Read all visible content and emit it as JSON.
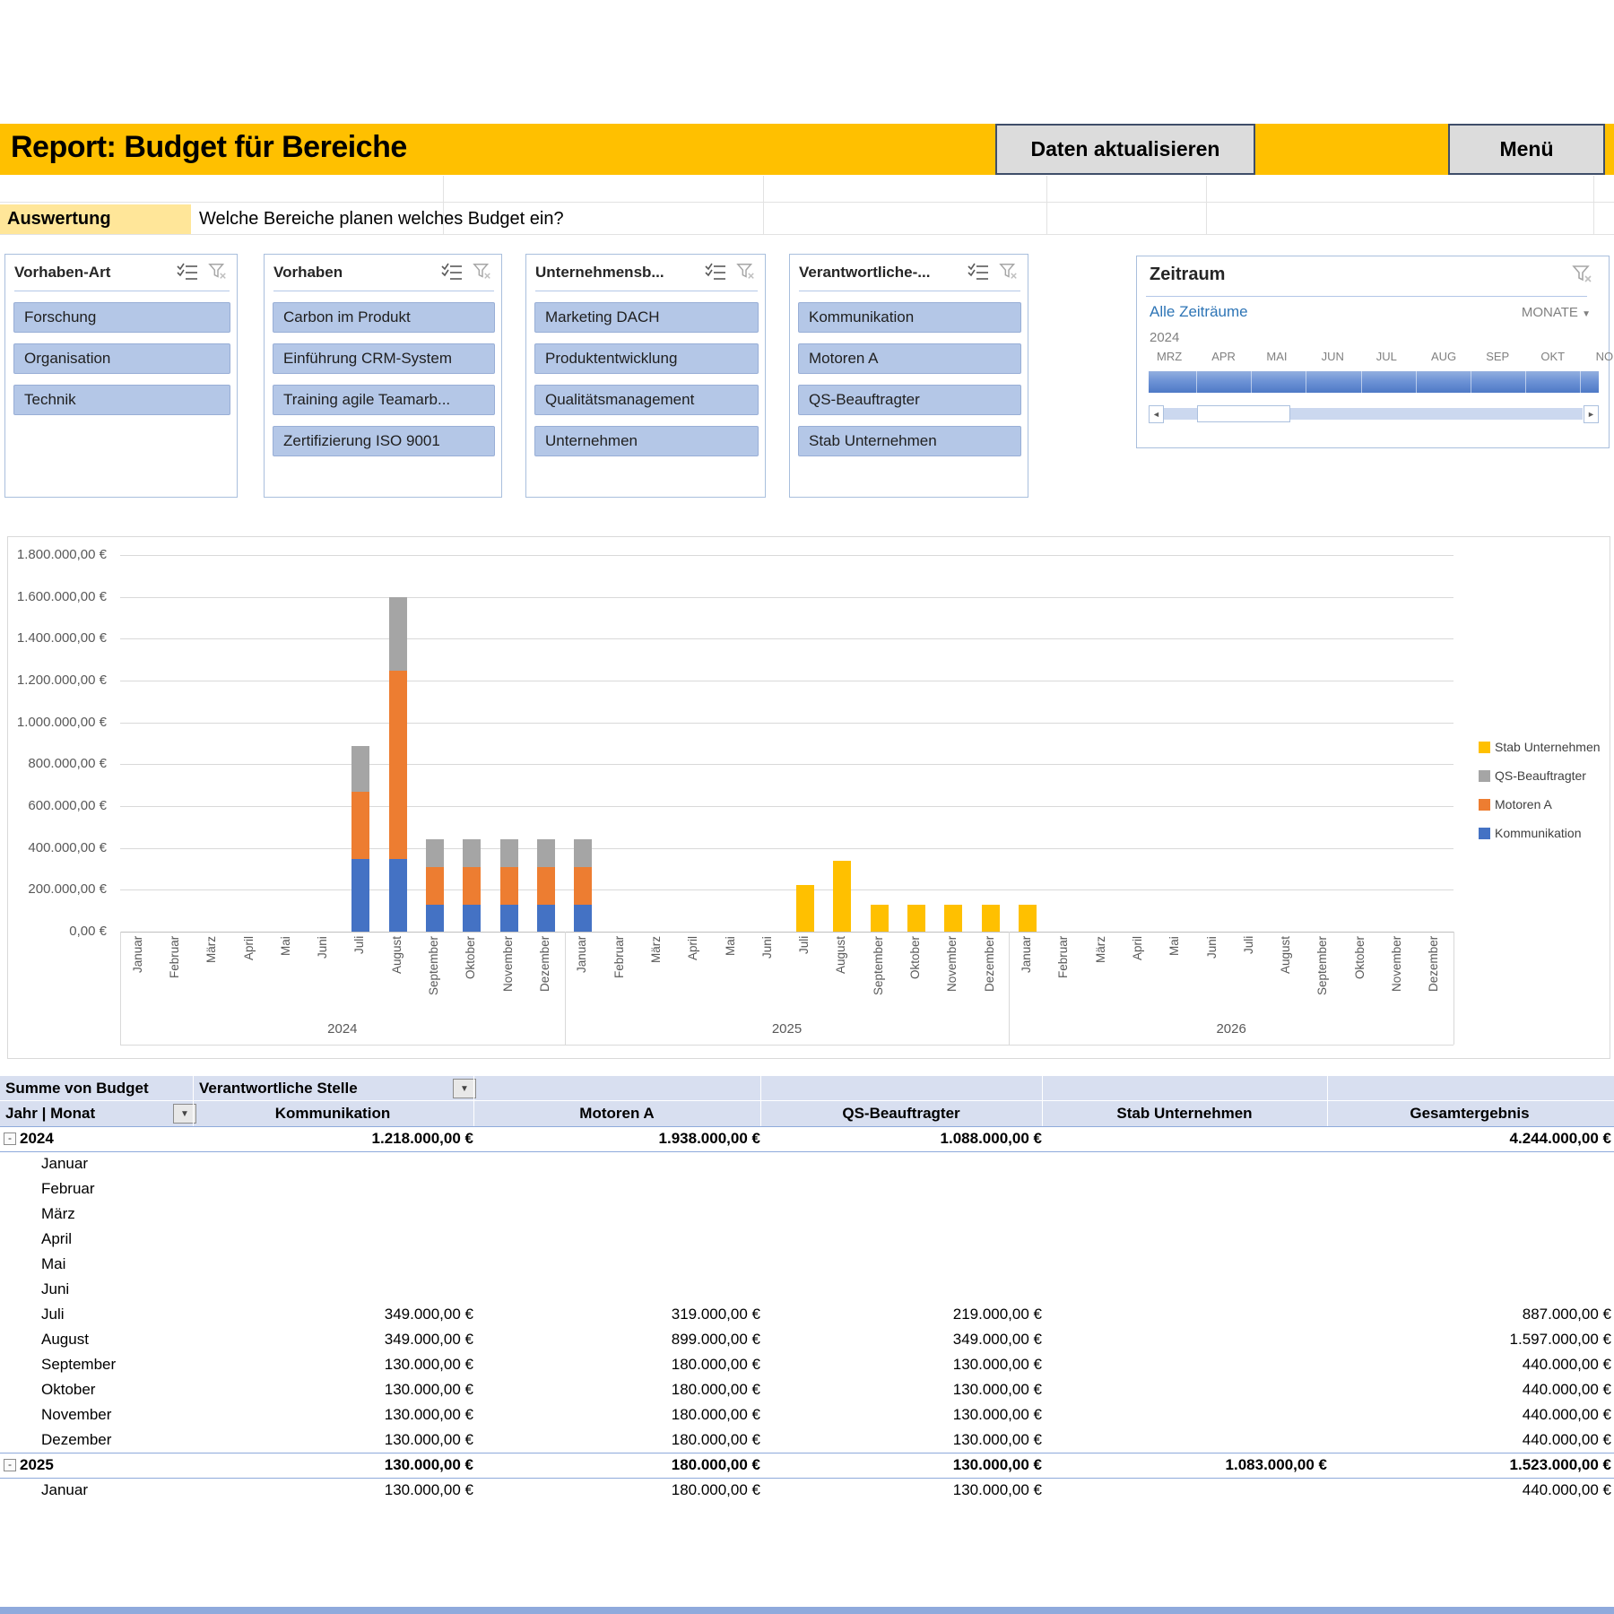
{
  "header": {
    "title": "Report: Budget für Bereiche",
    "refresh_button": "Daten aktualisieren",
    "menu_button": "Menü",
    "accent_color": "#FFC000"
  },
  "auswertung": {
    "label": "Auswertung",
    "question": "Welche Bereiche planen welches Budget ein?"
  },
  "slicers": [
    {
      "title": "Vorhaben-Art",
      "items": [
        "Forschung",
        "Organisation",
        "Technik"
      ]
    },
    {
      "title": "Vorhaben",
      "items": [
        "Carbon im Produkt",
        "Einführung CRM-System",
        "Training agile Teamarb...",
        "Zertifizierung ISO 9001"
      ]
    },
    {
      "title": "Unternehmensb...",
      "items": [
        "Marketing DACH",
        "Produktentwicklung",
        "Qualitätsmanagement",
        "Unternehmen"
      ]
    },
    {
      "title": "Verantwortliche-...",
      "items": [
        "Kommunikation",
        "Motoren A",
        "QS-Beauftragter",
        "Stab Unternehmen"
      ]
    }
  ],
  "timeline": {
    "title": "Zeitraum",
    "selection_label": "Alle Zeiträume",
    "level_selector": "MONATE",
    "level_arrow": "▼",
    "year": "2024",
    "months": [
      "MRZ",
      "APR",
      "MAI",
      "JUN",
      "JUL",
      "AUG",
      "SEP",
      "OKT",
      "NO"
    ],
    "scroll_left": "◄",
    "scroll_right": "►"
  },
  "chart_data": {
    "type": "bar",
    "stacked": true,
    "title": "",
    "ylabel": "",
    "ylim": [
      0,
      1800000
    ],
    "ytick_step": 200000,
    "y_tick_labels": [
      "0,00 €",
      "200.000,00 €",
      "400.000,00 €",
      "600.000,00 €",
      "800.000,00 €",
      "1.000.000,00 €",
      "1.200.000,00 €",
      "1.400.000,00 €",
      "1.600.000,00 €",
      "1.800.000,00 €"
    ],
    "month_labels": [
      "Januar",
      "Februar",
      "März",
      "April",
      "Mai",
      "Juni",
      "Juli",
      "August",
      "September",
      "Oktober",
      "November",
      "Dezember"
    ],
    "years": [
      "2024",
      "2025",
      "2026"
    ],
    "legend_position": "right",
    "series": [
      {
        "name": "Kommunikation",
        "color": "#4472C4",
        "values": [
          0,
          0,
          0,
          0,
          0,
          0,
          349000,
          349000,
          130000,
          130000,
          130000,
          130000,
          130000,
          0,
          0,
          0,
          0,
          0,
          0,
          0,
          0,
          0,
          0,
          0,
          0,
          0,
          0,
          0,
          0,
          0,
          0,
          0,
          0,
          0,
          0,
          0
        ]
      },
      {
        "name": "Motoren A",
        "color": "#ED7D31",
        "values": [
          0,
          0,
          0,
          0,
          0,
          0,
          319000,
          899000,
          180000,
          180000,
          180000,
          180000,
          180000,
          0,
          0,
          0,
          0,
          0,
          0,
          0,
          0,
          0,
          0,
          0,
          0,
          0,
          0,
          0,
          0,
          0,
          0,
          0,
          0,
          0,
          0,
          0
        ]
      },
      {
        "name": "QS-Beauftragter",
        "color": "#A5A5A5",
        "values": [
          0,
          0,
          0,
          0,
          0,
          0,
          219000,
          349000,
          130000,
          130000,
          130000,
          130000,
          130000,
          0,
          0,
          0,
          0,
          0,
          0,
          0,
          0,
          0,
          0,
          0,
          0,
          0,
          0,
          0,
          0,
          0,
          0,
          0,
          0,
          0,
          0,
          0
        ]
      },
      {
        "name": "Stab Unternehmen",
        "color": "#FFC000",
        "values": [
          0,
          0,
          0,
          0,
          0,
          0,
          0,
          0,
          0,
          0,
          0,
          0,
          0,
          0,
          0,
          0,
          0,
          0,
          223000,
          340000,
          130000,
          130000,
          130000,
          130000,
          130000,
          0,
          0,
          0,
          0,
          0,
          0,
          0,
          0,
          0,
          0,
          0
        ]
      }
    ]
  },
  "pivot": {
    "measure_label": "Summe von Budget",
    "column_field_label": "Verantwortliche Stelle",
    "row_field_label": "Jahr | Monat",
    "dropdown_glyph": "▼",
    "collapse_glyph": "-",
    "columns": [
      "Kommunikation",
      "Motoren A",
      "QS-Beauftragter",
      "Stab Unternehmen",
      "Gesamtergebnis"
    ],
    "rows": [
      {
        "type": "year",
        "label": "2024",
        "values": [
          "1.218.000,00 €",
          "1.938.000,00 €",
          "1.088.000,00 €",
          "",
          "4.244.000,00 €"
        ]
      },
      {
        "type": "month",
        "label": "Januar",
        "values": [
          "",
          "",
          "",
          "",
          ""
        ]
      },
      {
        "type": "month",
        "label": "Februar",
        "values": [
          "",
          "",
          "",
          "",
          ""
        ]
      },
      {
        "type": "month",
        "label": "März",
        "values": [
          "",
          "",
          "",
          "",
          ""
        ]
      },
      {
        "type": "month",
        "label": "April",
        "values": [
          "",
          "",
          "",
          "",
          ""
        ]
      },
      {
        "type": "month",
        "label": "Mai",
        "values": [
          "",
          "",
          "",
          "",
          ""
        ]
      },
      {
        "type": "month",
        "label": "Juni",
        "values": [
          "",
          "",
          "",
          "",
          ""
        ]
      },
      {
        "type": "month",
        "label": "Juli",
        "values": [
          "349.000,00 €",
          "319.000,00 €",
          "219.000,00 €",
          "",
          "887.000,00 €"
        ]
      },
      {
        "type": "month",
        "label": "August",
        "values": [
          "349.000,00 €",
          "899.000,00 €",
          "349.000,00 €",
          "",
          "1.597.000,00 €"
        ]
      },
      {
        "type": "month",
        "label": "September",
        "values": [
          "130.000,00 €",
          "180.000,00 €",
          "130.000,00 €",
          "",
          "440.000,00 €"
        ]
      },
      {
        "type": "month",
        "label": "Oktober",
        "values": [
          "130.000,00 €",
          "180.000,00 €",
          "130.000,00 €",
          "",
          "440.000,00 €"
        ]
      },
      {
        "type": "month",
        "label": "November",
        "values": [
          "130.000,00 €",
          "180.000,00 €",
          "130.000,00 €",
          "",
          "440.000,00 €"
        ]
      },
      {
        "type": "month",
        "label": "Dezember",
        "values": [
          "130.000,00 €",
          "180.000,00 €",
          "130.000,00 €",
          "",
          "440.000,00 €"
        ]
      },
      {
        "type": "year",
        "label": "2025",
        "values": [
          "130.000,00 €",
          "180.000,00 €",
          "130.000,00 €",
          "1.083.000,00 €",
          "1.523.000,00 €"
        ]
      },
      {
        "type": "month",
        "label": "Januar",
        "values": [
          "130.000,00 €",
          "180.000,00 €",
          "130.000,00 €",
          "",
          "440.000,00 €"
        ]
      }
    ]
  }
}
